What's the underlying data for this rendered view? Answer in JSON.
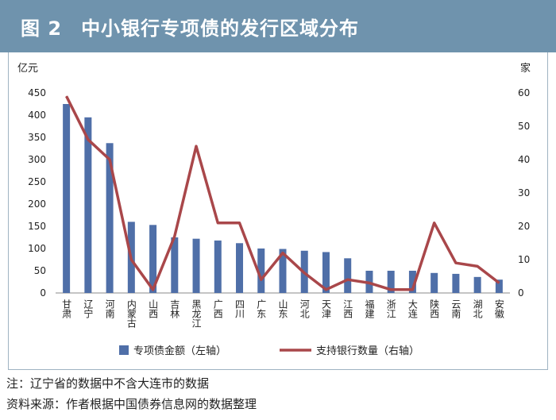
{
  "header": {
    "figure_number": "图 2",
    "title": "中小银行专项债的发行区域分布"
  },
  "notes": {
    "note": "注：辽宁省的数据中不含大连市的数据",
    "source": "资料来源：作者根据中国债券信息网的数据整理"
  },
  "chart_data": {
    "type": "bar+line",
    "categories": [
      "甘肃",
      "辽宁",
      "河南",
      "内蒙古",
      "山西",
      "吉林",
      "黑龙江",
      "广西",
      "四川",
      "广东",
      "山东",
      "河北",
      "天津",
      "江西",
      "福建",
      "浙江",
      "大连",
      "陕西",
      "云南",
      "湖北",
      "安徽"
    ],
    "series": [
      {
        "name": "专项债金额（左轴）",
        "type": "bar",
        "axis": "left",
        "color": "#4f6fa8",
        "values": [
          425,
          395,
          337,
          160,
          153,
          125,
          122,
          118,
          112,
          100,
          99,
          95,
          92,
          78,
          50,
          50,
          50,
          45,
          43,
          36,
          30
        ]
      },
      {
        "name": "支持银行数量（右轴）",
        "type": "line",
        "axis": "right",
        "color": "#a9474a",
        "values": [
          59,
          46,
          40,
          10,
          1,
          17,
          44,
          21,
          21,
          4,
          12,
          6,
          1,
          4,
          3,
          1,
          1,
          21,
          9,
          8,
          3
        ]
      }
    ],
    "left_axis": {
      "unit": "亿元",
      "min": 0,
      "max": 450,
      "ticks": [
        0,
        50,
        100,
        150,
        200,
        250,
        300,
        350,
        400,
        450
      ]
    },
    "right_axis": {
      "unit": "家",
      "min": 0,
      "max": 60,
      "ticks": [
        0,
        10,
        20,
        30,
        40,
        50,
        60
      ]
    },
    "grid": false,
    "legend_position": "bottom"
  }
}
